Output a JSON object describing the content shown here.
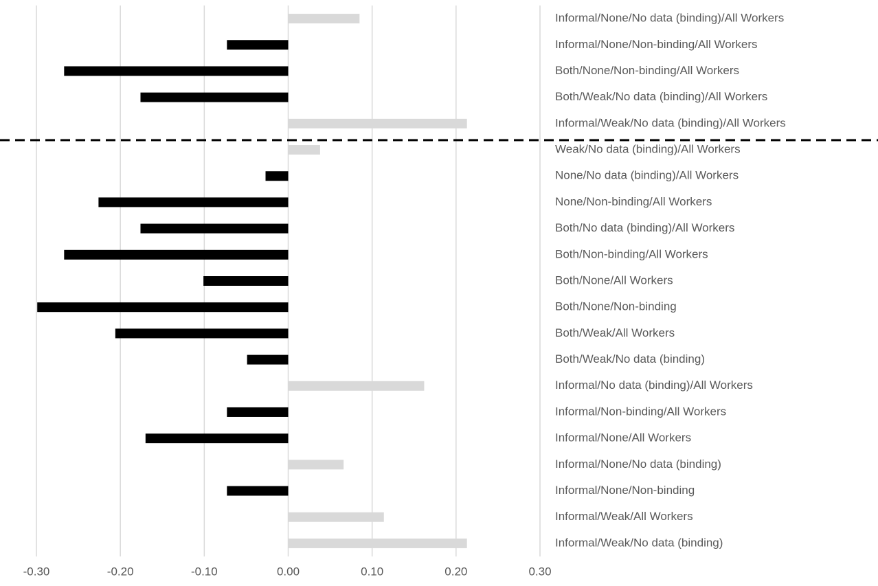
{
  "chart_data": {
    "type": "hbar",
    "categories": [
      "Informal/None/No data (binding)/All Workers",
      "Informal/None/Non-binding/All Workers",
      "Both/None/Non-binding/All Workers",
      "Both/Weak/No data (binding)/All Workers",
      "Informal/Weak/No data (binding)/All Workers",
      "Weak/No data (binding)/All Workers",
      "None/No data (binding)/All Workers",
      "None/Non-binding/All Workers",
      "Both/No data (binding)/All Workers",
      "Both/Non-binding/All Workers",
      "Both/None/All Workers",
      "Both/None/Non-binding",
      "Both/Weak/All Workers",
      "Both/Weak/No data (binding)",
      "Informal/No data (binding)/All Workers",
      "Informal/Non-binding/All Workers",
      "Informal/None/All Workers",
      "Informal/None/No data (binding)",
      "Informal/None/Non-binding",
      "Informal/Weak/All Workers",
      "Informal/Weak/No data (binding)"
    ],
    "values": [
      0.085,
      -0.073,
      -0.267,
      -0.176,
      0.213,
      0.038,
      -0.027,
      -0.226,
      -0.176,
      -0.267,
      -0.101,
      -0.299,
      -0.206,
      -0.049,
      0.162,
      -0.073,
      -0.17,
      0.066,
      -0.073,
      0.114,
      0.213
    ],
    "positive_color": "#d9d9d9",
    "negative_color": "#000000",
    "xlim": [
      -0.3,
      0.3
    ],
    "xticks": [
      {
        "value": -0.3,
        "label": "-0.30"
      },
      {
        "value": -0.2,
        "label": "-0.20"
      },
      {
        "value": -0.1,
        "label": "-0.10"
      },
      {
        "value": 0,
        "label": "0.00"
      },
      {
        "value": 0.1,
        "label": "0.10"
      },
      {
        "value": 0.2,
        "label": "0.20"
      },
      {
        "value": 0.3,
        "label": "0.30"
      }
    ],
    "grid": true
  }
}
